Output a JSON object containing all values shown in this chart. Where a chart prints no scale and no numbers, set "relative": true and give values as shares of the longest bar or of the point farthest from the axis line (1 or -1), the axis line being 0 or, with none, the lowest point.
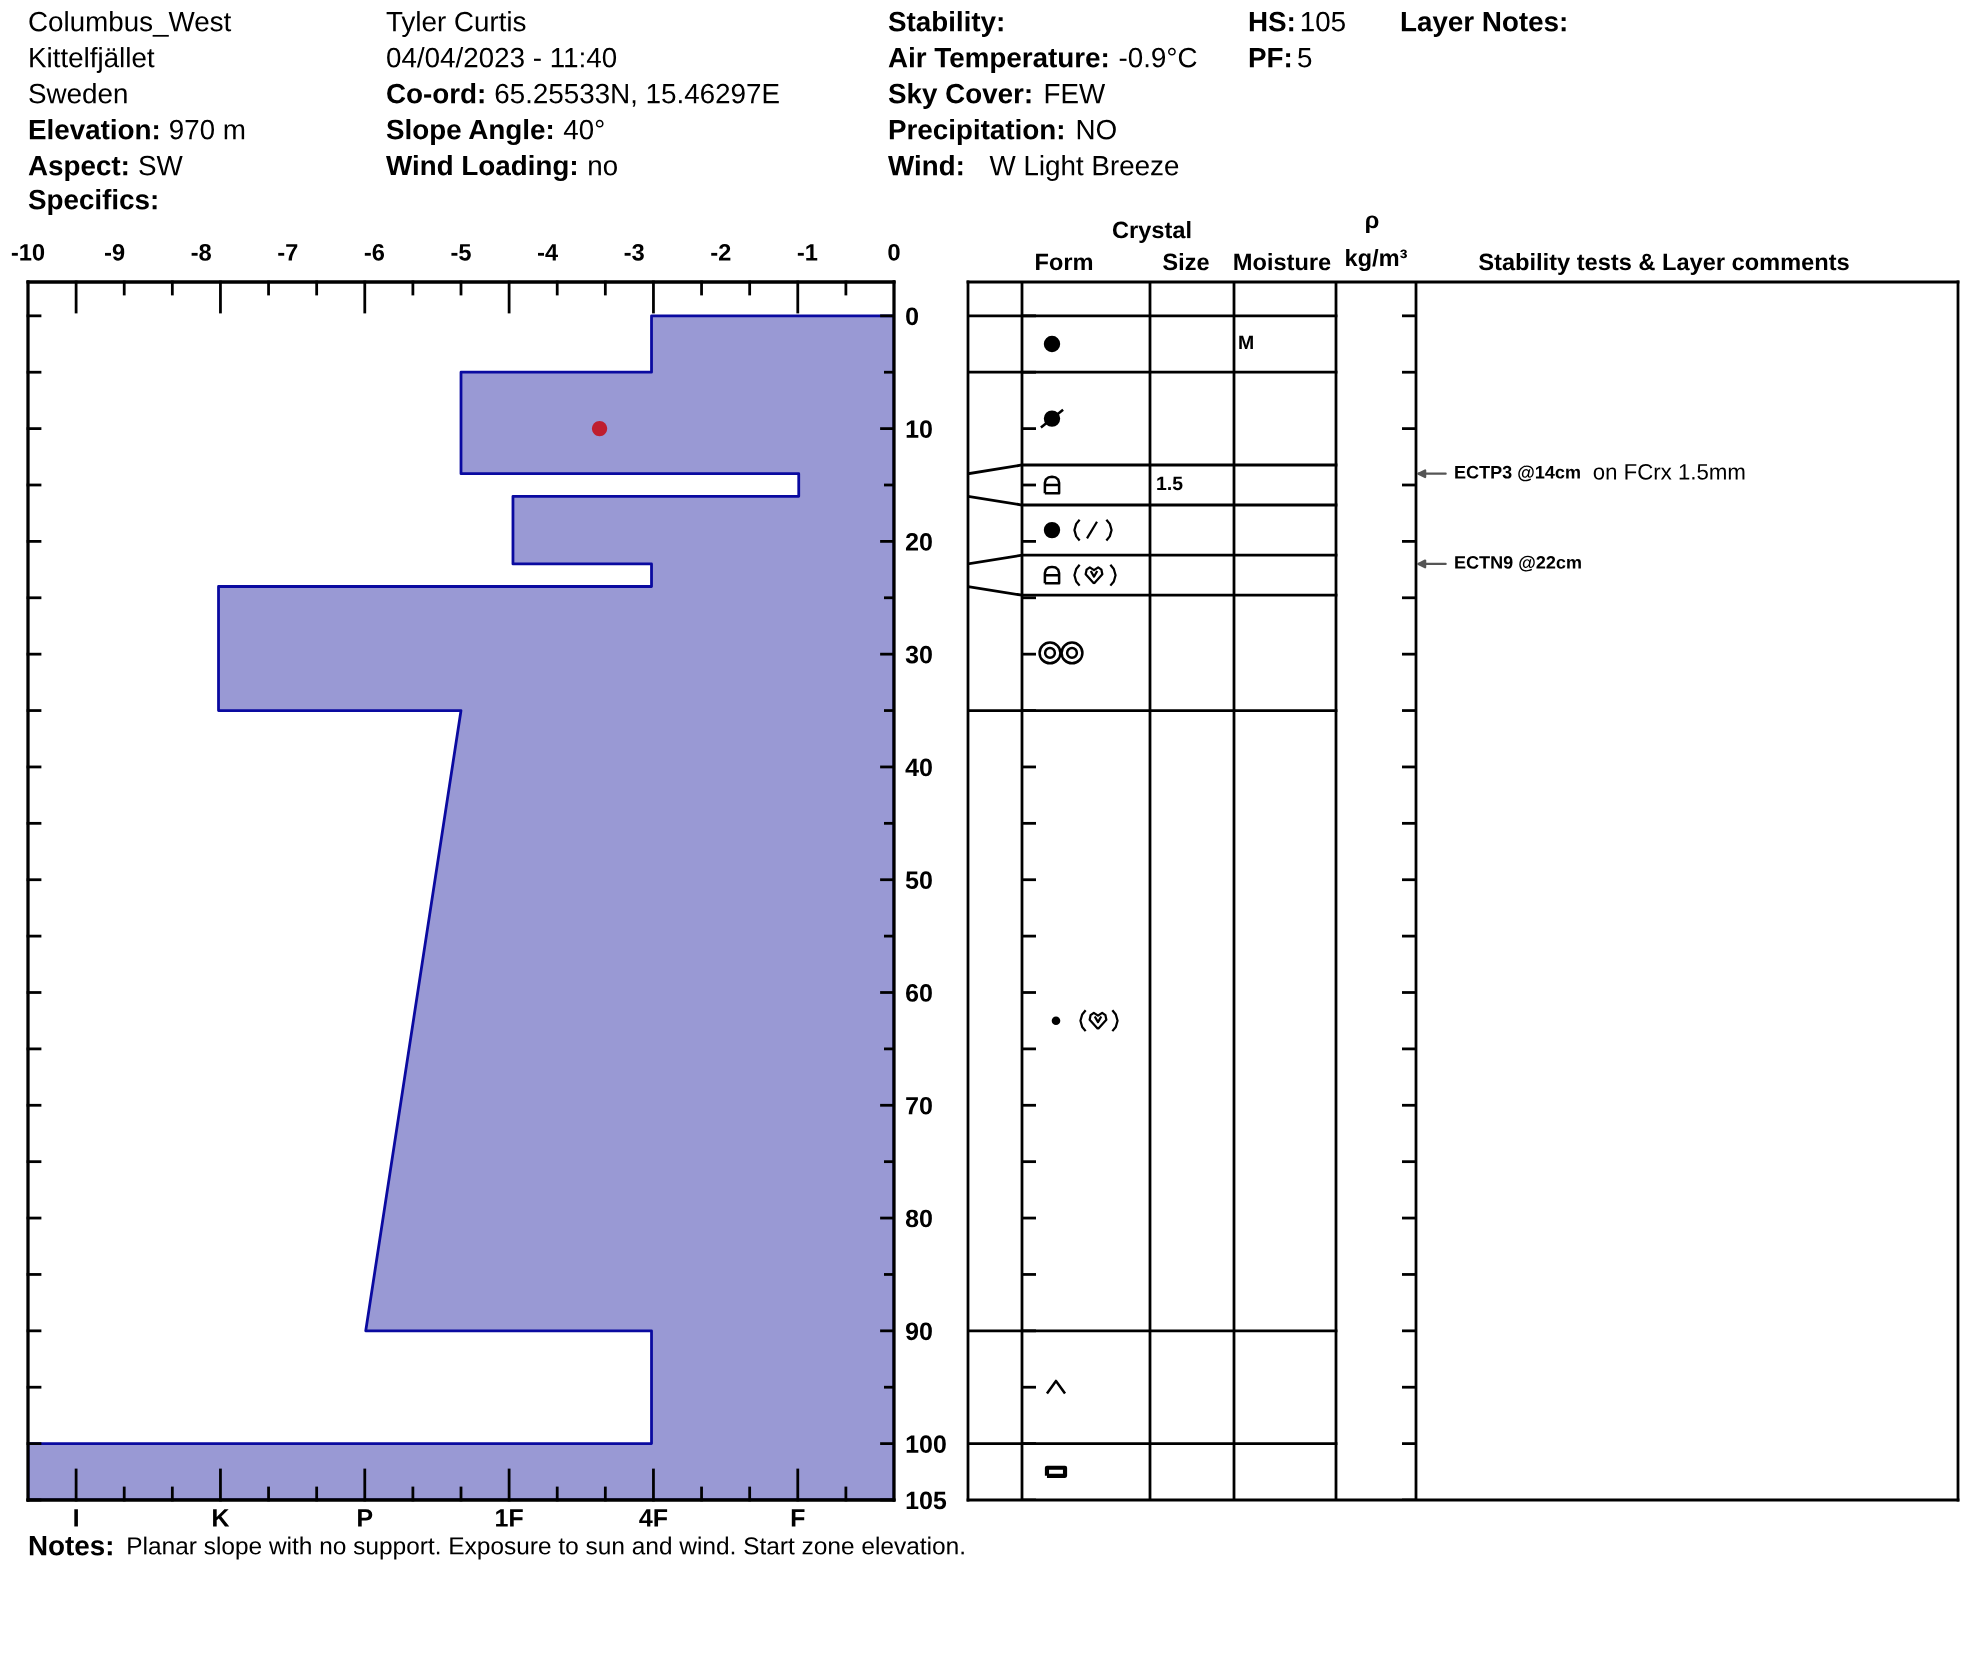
{
  "chart_data": [
    {
      "type": "area",
      "orientation": "horizontal",
      "relative": true,
      "tick_labels": "y",
      "ylim": [
        105,
        -3
      ],
      "yticks": [
        0,
        {
          "value": 5,
          "label": null
        },
        10,
        {
          "value": 15,
          "label": null
        },
        20,
        {
          "value": 25,
          "label": null
        },
        30,
        {
          "value": 35,
          "label": null
        },
        40,
        {
          "value": 45,
          "label": null
        },
        50,
        {
          "value": 55,
          "label": null
        },
        60,
        {
          "value": 65,
          "label": null
        },
        70,
        {
          "value": 75,
          "label": null
        },
        80,
        {
          "value": 85,
          "label": null
        },
        90,
        {
          "value": 95,
          "label": null
        },
        100,
        105
      ],
      "series": [
        {
          "color": "#9999d4",
          "x": [
            0,
            5,
            5,
            14,
            14,
            16,
            16,
            22,
            22,
            24,
            24,
            35,
            35,
            90,
            90,
            100,
            100,
            105
          ],
          "values": [
            -0.28,
            -0.28,
            -0.5,
            -0.5,
            -0.11,
            -0.11,
            -0.44,
            -0.44,
            -0.28,
            -0.28,
            -0.78,
            -0.78,
            -0.5,
            -0.61,
            -0.28,
            -0.28,
            -1,
            -1
          ]
        }
      ],
      "annotations": [
        "Columbus_West",
        "Kittelfjället",
        "Sweden",
        "Elevation:",
        "970 m",
        "Aspect:",
        "SW",
        "Specifics:",
        "Tyler Curtis",
        "04/04/2023 - 11:40",
        "Co-ord:",
        "65.25533N, 15.46297E",
        "Slope Angle:",
        "40°",
        "Wind Loading:",
        "no",
        "Stability:",
        "Air Temperature:",
        "-0.9°C",
        "Sky Cover:",
        "FEW",
        "Precipitation:",
        "NO",
        "Wind:",
        "W Light Breeze",
        "HS:",
        "105",
        "PF:",
        "5",
        "Layer Notes:",
        "Crystal",
        "Form",
        "Size",
        "Moisture",
        "ρ",
        "kg/m³",
        "Stability tests & Layer comments",
        "Notes:",
        "Planar slope with no support. Exposure to sun and wind. Start zone elevation.",
        "I",
        "K",
        "P",
        "1F",
        "4F",
        "F",
        "M",
        "1.5",
        "ECTP3 @14cm",
        "on FCrx 1.5mm",
        "ECTN9 @22cm"
      ]
    },
    {
      "type": "scatter",
      "marker": "circle",
      "tick_labels": "x",
      "xlim": [
        -10,
        0
      ],
      "xticks": [
        -10,
        -9,
        -8,
        -7,
        -6,
        -5,
        -4,
        -3,
        -2,
        -1,
        0
      ],
      "ylim": [
        105,
        -3
      ],
      "series": [
        {
          "color": "#bf1e2e",
          "x": [
            -3.4
          ],
          "values": [
            10
          ]
        }
      ]
    }
  ]
}
